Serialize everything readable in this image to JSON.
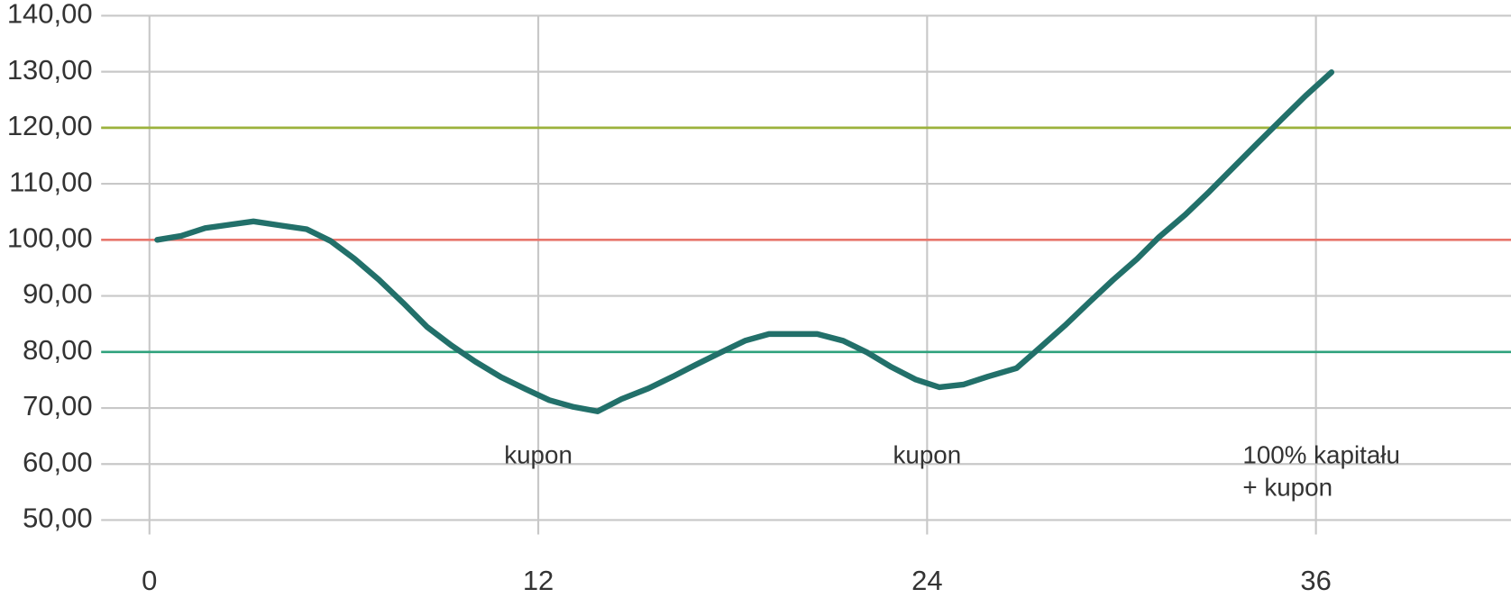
{
  "chart_data": {
    "type": "line",
    "x": [
      0.24,
      0.98,
      1.72,
      3.21,
      4.01,
      4.85,
      5.59,
      6.33,
      7.08,
      7.82,
      8.56,
      9.31,
      10.05,
      10.85,
      11.6,
      12.34,
      13.08,
      13.83,
      14.57,
      15.4,
      16.15,
      16.89,
      17.63,
      18.38,
      19.12,
      19.86,
      20.61,
      21.41,
      22.15,
      22.9,
      23.64,
      24.38,
      25.13,
      25.87,
      26.76,
      27.45,
      28.25,
      28.99,
      29.73,
      30.48,
      31.16,
      31.97,
      32.71,
      33.45,
      34.19,
      34.94,
      35.68,
      36.48
    ],
    "series": [
      {
        "color": "#22706a",
        "values": [
          100.0,
          100.7,
          102.1,
          103.3,
          102.6,
          101.9,
          99.8,
          96.6,
          92.9,
          88.8,
          84.5,
          81.2,
          78.3,
          75.5,
          73.4,
          71.4,
          70.2,
          69.4,
          71.6,
          73.5,
          75.6,
          77.8,
          79.9,
          82.0,
          83.2,
          83.2,
          83.2,
          82.0,
          79.9,
          77.3,
          75.1,
          73.7,
          74.2,
          75.6,
          77.1,
          80.6,
          84.7,
          88.8,
          92.8,
          96.6,
          100.5,
          104.5,
          108.6,
          112.9,
          117.2,
          121.5,
          125.7,
          129.9
        ]
      }
    ],
    "xlim": [
      -1.49,
      42.02
    ],
    "xticks": [
      0,
      12,
      24,
      36
    ],
    "ylim": [
      47.4,
      140
    ],
    "yticks": [
      {
        "value": 140,
        "label": "140,00"
      },
      {
        "value": 130,
        "label": "130,00"
      },
      {
        "value": 120,
        "label": "120,00"
      },
      {
        "value": 110,
        "label": "110,00"
      },
      {
        "value": 100,
        "label": "100,00"
      },
      {
        "value": 90,
        "label": "90,00"
      },
      {
        "value": 80,
        "label": "80,00"
      },
      {
        "value": 70,
        "label": "70,00"
      },
      {
        "value": 60,
        "label": "60,00"
      },
      {
        "value": 50,
        "label": "50,00"
      }
    ],
    "reference_lines": [
      {
        "value": 120,
        "color": "#9cb23c"
      },
      {
        "value": 100,
        "color": "#e8766c"
      },
      {
        "value": 80,
        "color": "#2fa27d"
      }
    ],
    "annotations": [
      [
        "kupon"
      ],
      [
        "kupon"
      ],
      [
        "100% kapitału",
        "+ kupon"
      ]
    ],
    "grid": true
  }
}
